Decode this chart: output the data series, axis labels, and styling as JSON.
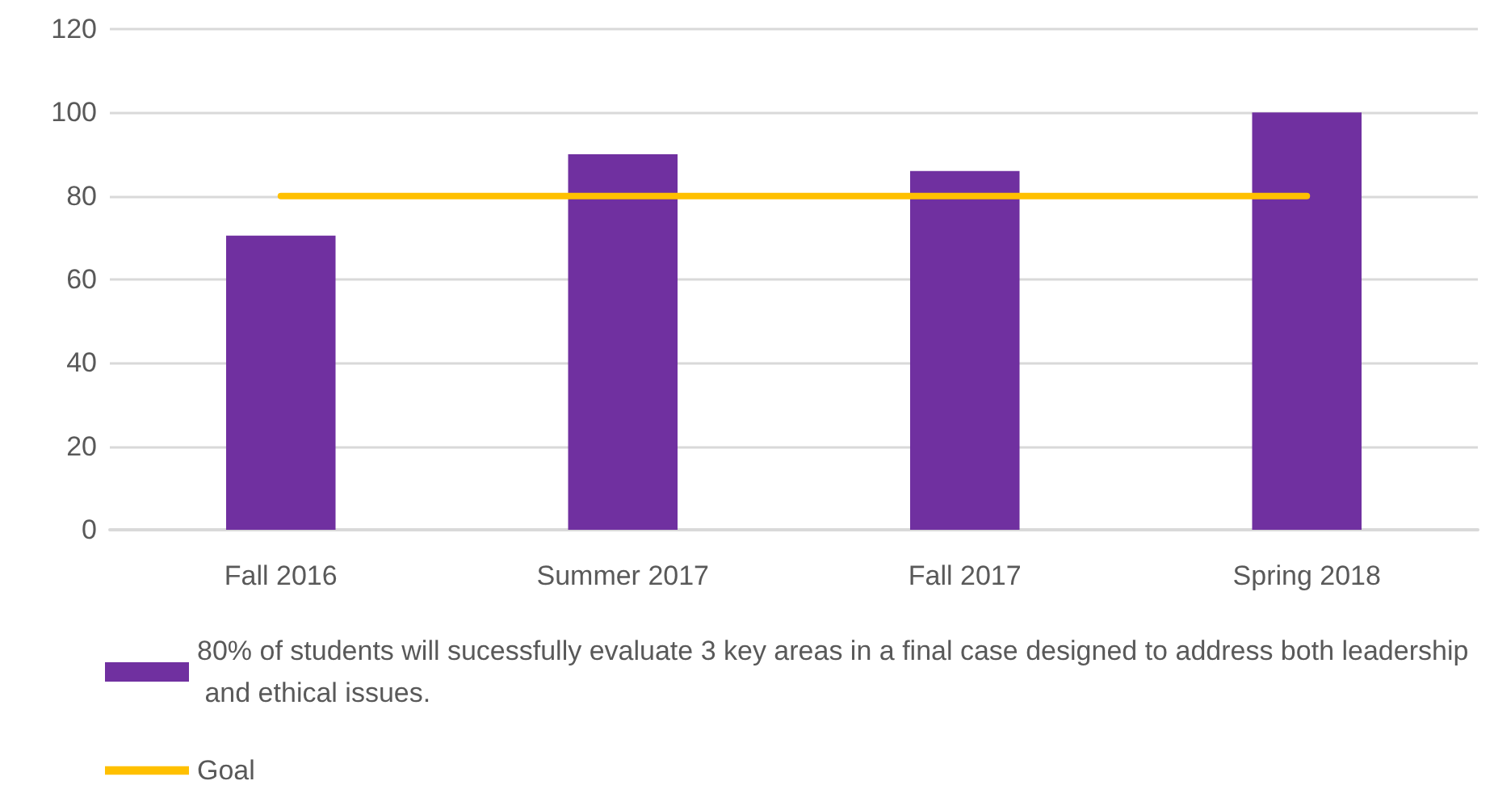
{
  "chart_data": {
    "type": "bar",
    "categories": [
      "Fall 2016",
      "Summer 2017",
      "Fall 2017",
      "Spring 2018"
    ],
    "series": [
      {
        "name": "80% of students will sucessfully evaluate 3 key areas in a final case designed to address both leadership and ethical issues.",
        "color": "#7030a0",
        "values": [
          70.5,
          90,
          86,
          100
        ]
      },
      {
        "name": "Goal",
        "type": "line",
        "color": "#ffc000",
        "values": [
          80,
          80,
          80,
          80
        ]
      }
    ],
    "ylim": [
      0,
      120
    ],
    "yticks": [
      0,
      20,
      40,
      60,
      80,
      100,
      120
    ],
    "grid": "y",
    "legend": "bottom",
    "marker": "none"
  }
}
